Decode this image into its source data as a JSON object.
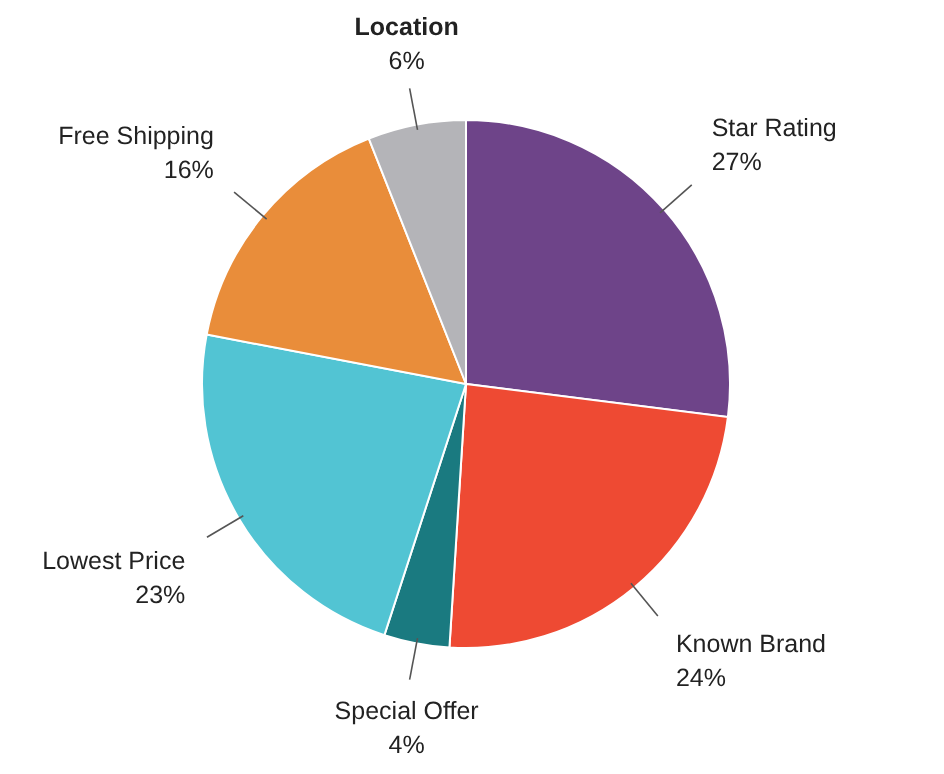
{
  "chart_data": {
    "type": "pie",
    "categories": [
      "Star Rating",
      "Known Brand",
      "Special Offer",
      "Lowest Price",
      "Free Shipping",
      "Location"
    ],
    "values": [
      27,
      24,
      4,
      23,
      16,
      6
    ],
    "value_labels": [
      "27%",
      "24%",
      "4%",
      "23%",
      "16%",
      "6%"
    ],
    "colors": [
      "#6e4489",
      "#ee4a33",
      "#1a7a80",
      "#52c4d3",
      "#e98d3a",
      "#b4b4b8"
    ]
  }
}
